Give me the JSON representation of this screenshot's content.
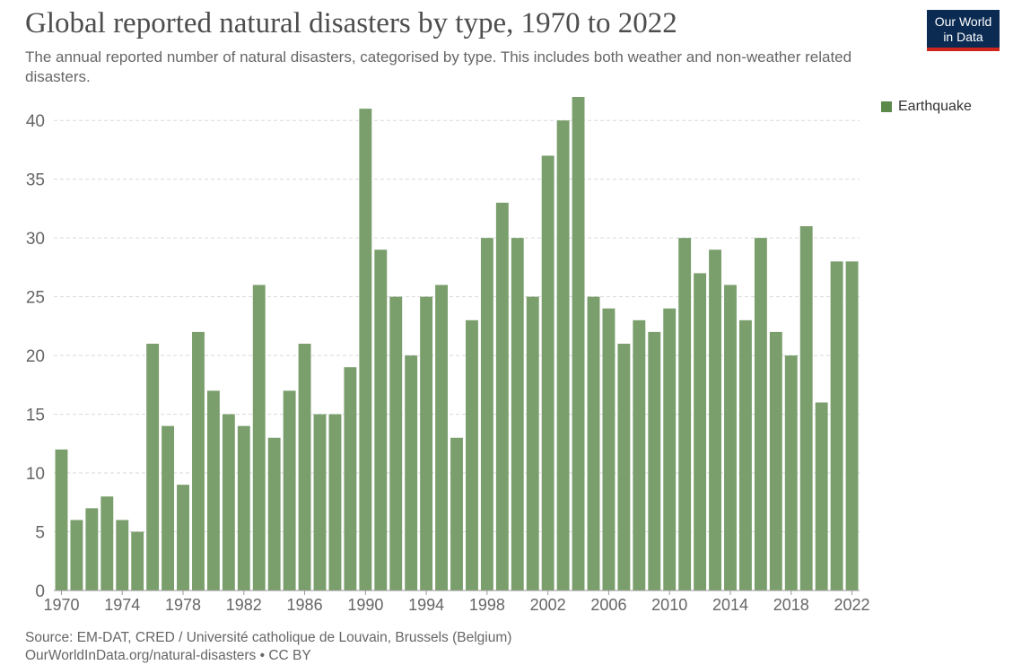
{
  "header": {
    "title": "Global reported natural disasters by type, 1970 to 2022",
    "subtitle": "The annual reported number of natural disasters, categorised by type. This includes both weather and non-weather related disasters."
  },
  "logo": {
    "line1": "Our World",
    "line2": "in Data",
    "bg_color": "#0b2b52",
    "accent_color": "#ce261e"
  },
  "footer": {
    "source": "Source: EM-DAT, CRED / Université catholique de Louvain, Brussels (Belgium)",
    "url_license": "OurWorldInData.org/natural-disasters • CC BY"
  },
  "chart_data": {
    "type": "bar",
    "x": [
      1970,
      1971,
      1972,
      1973,
      1974,
      1975,
      1976,
      1977,
      1978,
      1979,
      1980,
      1981,
      1982,
      1983,
      1984,
      1985,
      1986,
      1987,
      1988,
      1989,
      1990,
      1991,
      1992,
      1993,
      1994,
      1995,
      1996,
      1997,
      1998,
      1999,
      2000,
      2001,
      2002,
      2003,
      2004,
      2005,
      2006,
      2007,
      2008,
      2009,
      2010,
      2011,
      2012,
      2013,
      2014,
      2015,
      2016,
      2017,
      2018,
      2019,
      2020,
      2021,
      2022
    ],
    "series": [
      {
        "name": "Earthquake",
        "color": "#7a9f6c",
        "values": [
          12,
          6,
          7,
          8,
          6,
          5,
          21,
          14,
          9,
          22,
          17,
          15,
          14,
          26,
          13,
          17,
          21,
          15,
          15,
          19,
          41,
          29,
          25,
          20,
          25,
          26,
          13,
          23,
          30,
          33,
          30,
          25,
          37,
          40,
          42,
          25,
          24,
          21,
          23,
          22,
          24,
          30,
          27,
          29,
          26,
          23,
          30,
          22,
          20,
          31,
          16,
          28,
          28
        ]
      }
    ],
    "x_tick_labels": [
      "1970",
      "1974",
      "1978",
      "1982",
      "1986",
      "1990",
      "1994",
      "1998",
      "2002",
      "2006",
      "2010",
      "2014",
      "2018",
      "2022"
    ],
    "y_tick_labels": [
      "0",
      "5",
      "10",
      "15",
      "20",
      "25",
      "30",
      "35",
      "40"
    ],
    "ylim": [
      0,
      42
    ],
    "grid": "horizontal dashed",
    "legend_position": "top-right",
    "legend_color": "#5b8a4b"
  }
}
